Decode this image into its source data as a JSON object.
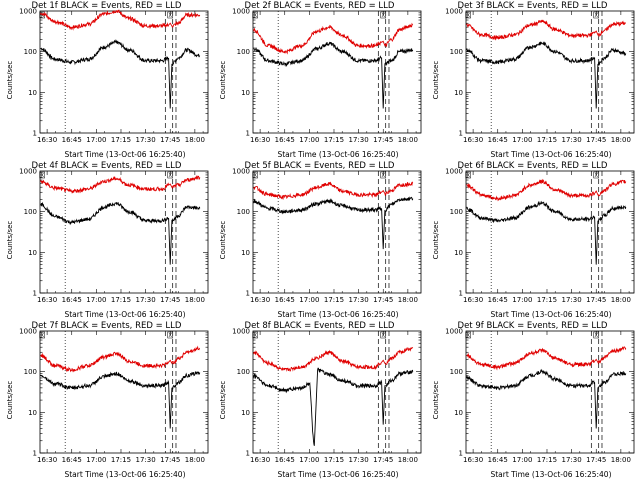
{
  "y_axis_label": "Counts/sec",
  "x_axis_label": "Start Time (13-Oct-06 16:25:40)",
  "colors": {
    "events": "#000000",
    "lld": "#e00000"
  },
  "chart_data": [
    {
      "type": "line",
      "title": "Det 1f BLACK = Events, RED = LLD",
      "xlabel": "Start Time (13-Oct-06 16:25:40)",
      "ylabel": "Counts/sec",
      "yscale": "log",
      "ylim": [
        1,
        1000
      ],
      "y_ticks": [
        "1",
        "10",
        "100",
        "1000"
      ],
      "x_ticks": [
        "16:30",
        "16:45",
        "17:00",
        "17:15",
        "17:30",
        "17:45",
        "18:00"
      ],
      "marker_label": "X",
      "series": [
        {
          "color": "#000000",
          "x": [
            "16:26",
            "16:35",
            "16:45",
            "16:55",
            "17:05",
            "17:12",
            "17:20",
            "17:30",
            "17:40",
            "17:44",
            "17:45",
            "17:46",
            "17:50",
            "17:55",
            "18:03"
          ],
          "y": [
            120,
            65,
            55,
            65,
            130,
            170,
            110,
            60,
            60,
            70,
            4,
            50,
            70,
            110,
            80
          ]
        },
        {
          "color": "#e00000",
          "x": [
            "16:26",
            "16:35",
            "16:45",
            "16:55",
            "17:05",
            "17:12",
            "17:20",
            "17:30",
            "17:40",
            "17:44",
            "17:45",
            "17:46",
            "17:50",
            "17:55",
            "18:03"
          ],
          "y": [
            900,
            550,
            400,
            470,
            850,
            1000,
            650,
            430,
            430,
            450,
            500,
            430,
            500,
            800,
            800
          ]
        }
      ]
    },
    {
      "type": "line",
      "title": "Det 2f BLACK = Events, RED = LLD",
      "xlabel": "Start Time (13-Oct-06 16:25:40)",
      "ylabel": "Counts/sec",
      "yscale": "log",
      "ylim": [
        1,
        1000
      ],
      "y_ticks": [
        "1",
        "10",
        "100",
        "1000"
      ],
      "x_ticks": [
        "16:30",
        "16:45",
        "17:00",
        "17:15",
        "17:30",
        "17:45",
        "18:00"
      ],
      "marker_label": "X",
      "series": [
        {
          "color": "#000000",
          "x": [
            "16:26",
            "16:35",
            "16:45",
            "16:55",
            "17:05",
            "17:12",
            "17:20",
            "17:30",
            "17:40",
            "17:44",
            "17:45",
            "17:46",
            "17:50",
            "17:55",
            "18:03"
          ],
          "y": [
            120,
            60,
            50,
            60,
            120,
            160,
            100,
            60,
            60,
            70,
            4,
            50,
            60,
            100,
            110
          ]
        },
        {
          "color": "#e00000",
          "x": [
            "16:26",
            "16:35",
            "16:45",
            "16:55",
            "17:05",
            "17:12",
            "17:20",
            "17:30",
            "17:40",
            "17:44",
            "17:45",
            "17:46",
            "17:50",
            "17:55",
            "18:03"
          ],
          "y": [
            350,
            140,
            100,
            140,
            320,
            400,
            250,
            140,
            140,
            170,
            180,
            140,
            200,
            350,
            450
          ]
        }
      ]
    },
    {
      "type": "line",
      "title": "Det 3f BLACK = Events, RED = LLD",
      "xlabel": "Start Time (13-Oct-06 16:25:40)",
      "ylabel": "Counts/sec",
      "yscale": "log",
      "ylim": [
        1,
        1000
      ],
      "y_ticks": [
        "1",
        "10",
        "100",
        "1000"
      ],
      "x_ticks": [
        "16:30",
        "16:45",
        "17:00",
        "17:15",
        "17:30",
        "17:45",
        "18:00"
      ],
      "marker_label": "X",
      "series": [
        {
          "color": "#000000",
          "x": [
            "16:26",
            "16:35",
            "16:45",
            "16:55",
            "17:05",
            "17:12",
            "17:20",
            "17:30",
            "17:40",
            "17:44",
            "17:45",
            "17:46",
            "17:50",
            "17:55",
            "18:03"
          ],
          "y": [
            110,
            60,
            55,
            65,
            130,
            160,
            100,
            60,
            60,
            70,
            4,
            50,
            70,
            110,
            90
          ]
        },
        {
          "color": "#e00000",
          "x": [
            "16:26",
            "16:35",
            "16:45",
            "16:55",
            "17:05",
            "17:12",
            "17:20",
            "17:30",
            "17:40",
            "17:44",
            "17:45",
            "17:46",
            "17:50",
            "17:55",
            "18:03"
          ],
          "y": [
            450,
            260,
            220,
            260,
            450,
            550,
            350,
            250,
            250,
            290,
            320,
            260,
            330,
            470,
            500
          ]
        }
      ]
    },
    {
      "type": "line",
      "title": "Det 4f BLACK = Events, RED = LLD",
      "xlabel": "Start Time (13-Oct-06 16:25:40)",
      "ylabel": "Counts/sec",
      "yscale": "log",
      "ylim": [
        1,
        1000
      ],
      "y_ticks": [
        "1",
        "10",
        "100",
        "1000"
      ],
      "x_ticks": [
        "16:30",
        "16:45",
        "17:00",
        "17:15",
        "17:30",
        "17:45",
        "18:00"
      ],
      "marker_label": "X",
      "series": [
        {
          "color": "#000000",
          "x": [
            "16:26",
            "16:35",
            "16:45",
            "16:55",
            "17:05",
            "17:12",
            "17:20",
            "17:30",
            "17:40",
            "17:44",
            "17:45",
            "17:46",
            "17:50",
            "17:55",
            "18:03"
          ],
          "y": [
            150,
            75,
            55,
            65,
            130,
            160,
            100,
            60,
            60,
            70,
            5,
            60,
            80,
            130,
            120
          ]
        },
        {
          "color": "#e00000",
          "x": [
            "16:26",
            "16:35",
            "16:45",
            "16:55",
            "17:05",
            "17:12",
            "17:20",
            "17:30",
            "17:40",
            "17:44",
            "17:45",
            "17:46",
            "17:50",
            "17:55",
            "18:03"
          ],
          "y": [
            550,
            380,
            320,
            360,
            560,
            650,
            450,
            360,
            360,
            450,
            480,
            400,
            450,
            600,
            700
          ]
        }
      ]
    },
    {
      "type": "line",
      "title": "Det 5f BLACK = Events, RED = LLD",
      "xlabel": "Start Time (13-Oct-06 16:25:40)",
      "ylabel": "Counts/sec",
      "yscale": "log",
      "ylim": [
        1,
        1000
      ],
      "y_ticks": [
        "1",
        "10",
        "100",
        "1000"
      ],
      "x_ticks": [
        "16:30",
        "16:45",
        "17:00",
        "17:15",
        "17:30",
        "17:45",
        "18:00"
      ],
      "marker_label": "X",
      "series": [
        {
          "color": "#000000",
          "x": [
            "16:26",
            "16:35",
            "16:45",
            "16:55",
            "17:05",
            "17:12",
            "17:20",
            "17:30",
            "17:40",
            "17:44",
            "17:45",
            "17:46",
            "17:50",
            "17:55",
            "18:03"
          ],
          "y": [
            180,
            120,
            100,
            110,
            160,
            180,
            140,
            110,
            110,
            120,
            12,
            110,
            150,
            200,
            210
          ]
        },
        {
          "color": "#e00000",
          "x": [
            "16:26",
            "16:35",
            "16:45",
            "16:55",
            "17:05",
            "17:12",
            "17:20",
            "17:30",
            "17:40",
            "17:44",
            "17:45",
            "17:46",
            "17:50",
            "17:55",
            "18:03"
          ],
          "y": [
            400,
            260,
            230,
            260,
            400,
            480,
            320,
            260,
            260,
            300,
            330,
            280,
            330,
            450,
            500
          ]
        }
      ]
    },
    {
      "type": "line",
      "title": "Det 6f BLACK = Events, RED = LLD",
      "xlabel": "Start Time (13-Oct-06 16:25:40)",
      "ylabel": "Counts/sec",
      "yscale": "log",
      "ylim": [
        1,
        1000
      ],
      "y_ticks": [
        "1",
        "10",
        "100",
        "1000"
      ],
      "x_ticks": [
        "16:30",
        "16:45",
        "17:00",
        "17:15",
        "17:30",
        "17:45",
        "18:00"
      ],
      "marker_label": "X",
      "series": [
        {
          "color": "#000000",
          "x": [
            "16:26",
            "16:35",
            "16:45",
            "16:55",
            "17:05",
            "17:12",
            "17:20",
            "17:30",
            "17:40",
            "17:44",
            "17:45",
            "17:46",
            "17:50",
            "17:55",
            "18:03"
          ],
          "y": [
            120,
            70,
            60,
            70,
            130,
            160,
            100,
            65,
            65,
            75,
            5,
            60,
            80,
            120,
            130
          ]
        },
        {
          "color": "#e00000",
          "x": [
            "16:26",
            "16:35",
            "16:45",
            "16:55",
            "17:05",
            "17:12",
            "17:20",
            "17:30",
            "17:40",
            "17:44",
            "17:45",
            "17:46",
            "17:50",
            "17:55",
            "18:03"
          ],
          "y": [
            450,
            260,
            210,
            250,
            450,
            550,
            350,
            250,
            250,
            280,
            320,
            260,
            330,
            480,
            550
          ]
        }
      ]
    },
    {
      "type": "line",
      "title": "Det 7f BLACK = Events, RED = LLD",
      "xlabel": "Start Time (13-Oct-06 16:25:40)",
      "ylabel": "Counts/sec",
      "yscale": "log",
      "ylim": [
        1,
        1000
      ],
      "y_ticks": [
        "1",
        "10",
        "100",
        "1000"
      ],
      "x_ticks": [
        "16:30",
        "16:45",
        "17:00",
        "17:15",
        "17:30",
        "17:45",
        "18:00"
      ],
      "marker_label": "X",
      "series": [
        {
          "color": "#000000",
          "x": [
            "16:26",
            "16:35",
            "16:45",
            "16:55",
            "17:05",
            "17:12",
            "17:20",
            "17:30",
            "17:40",
            "17:44",
            "17:45",
            "17:46",
            "17:50",
            "17:55",
            "18:03"
          ],
          "y": [
            80,
            50,
            40,
            45,
            75,
            90,
            60,
            45,
            45,
            55,
            4,
            40,
            55,
            80,
            95
          ]
        },
        {
          "color": "#e00000",
          "x": [
            "16:26",
            "16:35",
            "16:45",
            "16:55",
            "17:05",
            "17:12",
            "17:20",
            "17:30",
            "17:40",
            "17:44",
            "17:45",
            "17:46",
            "17:50",
            "17:55",
            "18:03"
          ],
          "y": [
            250,
            140,
            110,
            140,
            230,
            280,
            180,
            140,
            140,
            170,
            190,
            160,
            210,
            300,
            370
          ]
        }
      ]
    },
    {
      "type": "line",
      "title": "Det 8f BLACK = Events, RED = LLD",
      "xlabel": "Start Time (13-Oct-06 16:25:40)",
      "ylabel": "Counts/sec",
      "yscale": "log",
      "ylim": [
        1,
        1000
      ],
      "y_ticks": [
        "1",
        "10",
        "100",
        "1000"
      ],
      "x_ticks": [
        "16:30",
        "16:45",
        "17:00",
        "17:15",
        "17:30",
        "17:45",
        "18:00"
      ],
      "marker_label": "X",
      "series": [
        {
          "color": "#000000",
          "x": [
            "16:26",
            "16:35",
            "16:45",
            "16:55",
            "17:00",
            "17:03",
            "17:05",
            "17:12",
            "17:20",
            "17:30",
            "17:40",
            "17:44",
            "17:45",
            "17:46",
            "17:50",
            "17:55",
            "18:03"
          ],
          "y": [
            80,
            45,
            35,
            40,
            50,
            1.5,
            110,
            85,
            60,
            45,
            45,
            55,
            5,
            45,
            60,
            90,
            100
          ]
        },
        {
          "color": "#e00000",
          "x": [
            "16:26",
            "16:35",
            "16:45",
            "16:55",
            "17:05",
            "17:12",
            "17:20",
            "17:30",
            "17:40",
            "17:44",
            "17:45",
            "17:46",
            "17:50",
            "17:55",
            "18:03"
          ],
          "y": [
            300,
            160,
            110,
            130,
            220,
            300,
            180,
            130,
            130,
            170,
            190,
            160,
            210,
            300,
            380
          ]
        }
      ]
    },
    {
      "type": "line",
      "title": "Det 9f BLACK = Events, RED = LLD",
      "xlabel": "Start Time (13-Oct-06 16:25:40)",
      "ylabel": "Counts/sec",
      "yscale": "log",
      "ylim": [
        1,
        1000
      ],
      "y_ticks": [
        "1",
        "10",
        "100",
        "1000"
      ],
      "x_ticks": [
        "16:30",
        "16:45",
        "17:00",
        "17:15",
        "17:30",
        "17:45",
        "18:00"
      ],
      "marker_label": "X",
      "series": [
        {
          "color": "#000000",
          "x": [
            "16:26",
            "16:35",
            "16:45",
            "16:55",
            "17:05",
            "17:12",
            "17:20",
            "17:30",
            "17:40",
            "17:44",
            "17:45",
            "17:46",
            "17:50",
            "17:55",
            "18:03"
          ],
          "y": [
            70,
            45,
            40,
            45,
            80,
            100,
            65,
            45,
            45,
            55,
            4,
            40,
            55,
            85,
            90
          ]
        },
        {
          "color": "#e00000",
          "x": [
            "16:26",
            "16:35",
            "16:45",
            "16:55",
            "17:05",
            "17:12",
            "17:20",
            "17:30",
            "17:40",
            "17:44",
            "17:45",
            "17:46",
            "17:50",
            "17:55",
            "18:03"
          ],
          "y": [
            250,
            150,
            130,
            160,
            280,
            330,
            210,
            150,
            150,
            180,
            200,
            170,
            220,
            320,
            380
          ]
        }
      ]
    }
  ]
}
